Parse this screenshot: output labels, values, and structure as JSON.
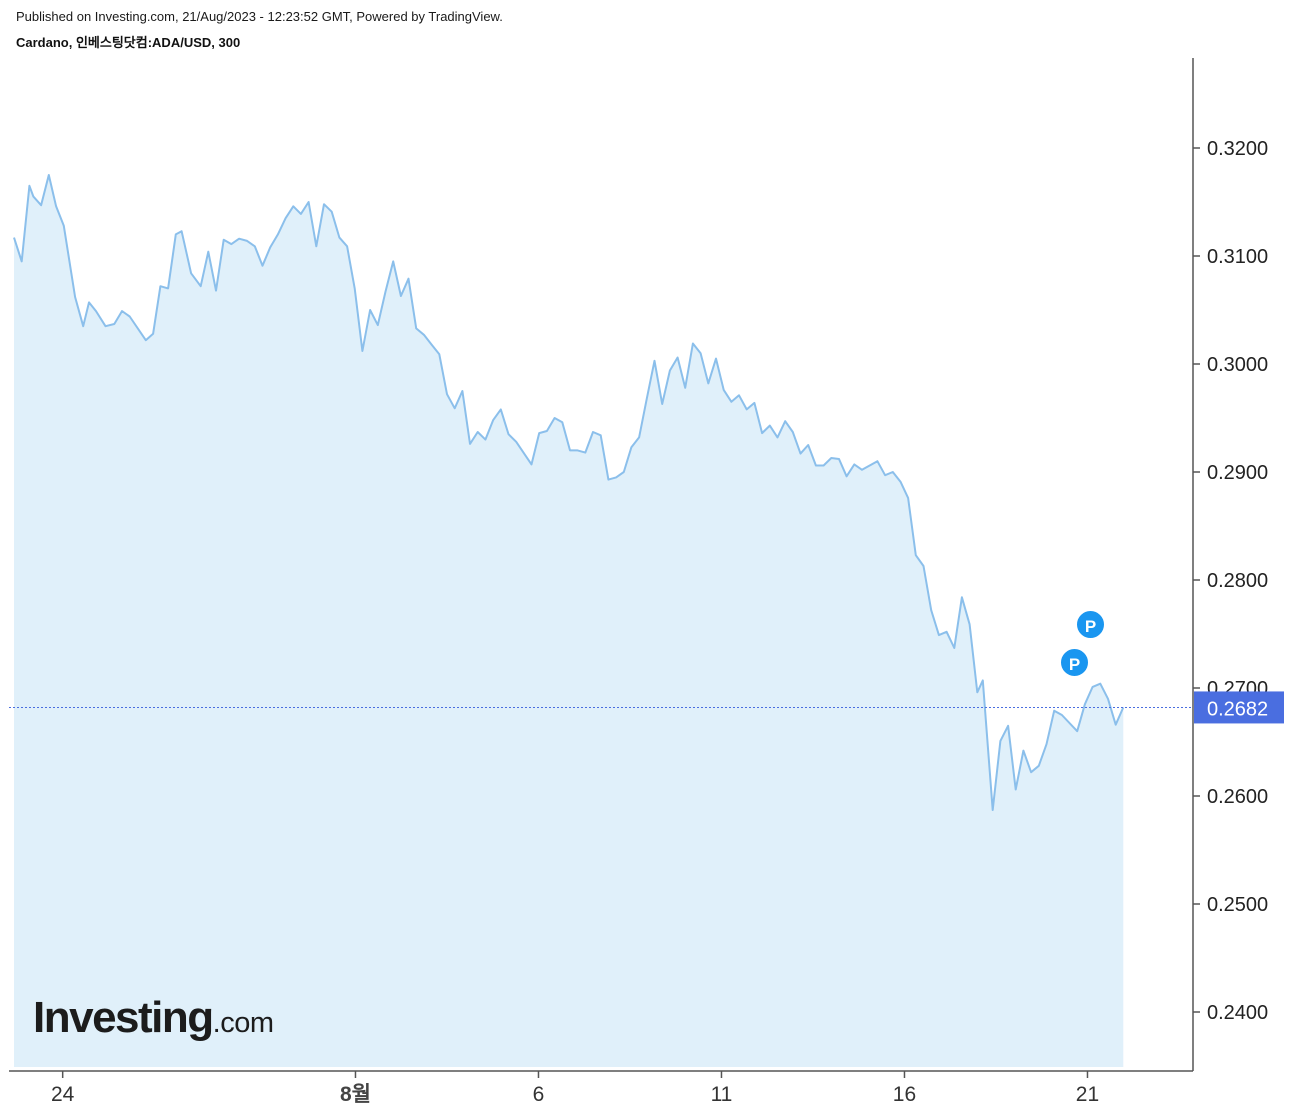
{
  "header": {
    "published": "Published on Investing.com, 21/Aug/2023 - 12:23:52 GMT, Powered by TradingView.",
    "symbol": "Cardano, 인베스팅닷컴:ADA/USD, 300"
  },
  "logo": {
    "word": "Investing",
    "tld": ".com"
  },
  "markers": [
    {
      "label": "P",
      "name": "marker-p-upper"
    },
    {
      "label": "P",
      "name": "marker-p-lower"
    }
  ],
  "colors": {
    "line": "#8bbfeb",
    "fill": "#e0f0fa",
    "price_label": "#4a6ee0",
    "axis": "#555555",
    "marker": "#1a96f0"
  },
  "chart_data": {
    "type": "area",
    "ylim": [
      0.2348,
      0.328
    ],
    "y_ticks": [
      {
        "v": 0.32,
        "label": "0.3200"
      },
      {
        "v": 0.31,
        "label": "0.3100"
      },
      {
        "v": 0.3,
        "label": "0.3000"
      },
      {
        "v": 0.29,
        "label": "0.2900"
      },
      {
        "v": 0.28,
        "label": "0.2800"
      },
      {
        "v": 0.27,
        "label": "0.2700"
      },
      {
        "v": 0.26,
        "label": "0.2600"
      },
      {
        "v": 0.25,
        "label": "0.2500"
      },
      {
        "v": 0.24,
        "label": "0.2400"
      }
    ],
    "x_ticks": [
      {
        "t": 1.33,
        "label": "24",
        "bold": false
      },
      {
        "t": 9.33,
        "label": "8월",
        "bold": true
      },
      {
        "t": 14.33,
        "label": "6",
        "bold": false
      },
      {
        "t": 19.33,
        "label": "11",
        "bold": false
      },
      {
        "t": 24.33,
        "label": "16",
        "bold": false
      },
      {
        "t": 29.33,
        "label": "21",
        "bold": false
      }
    ],
    "last_price": {
      "value": 0.2682,
      "label": "0.2682"
    },
    "series": [
      {
        "values": [
          [
            0.0,
            0.3117
          ],
          [
            0.21,
            0.3095
          ],
          [
            0.42,
            0.3165
          ],
          [
            0.53,
            0.3155
          ],
          [
            0.74,
            0.3147
          ],
          [
            0.95,
            0.3175
          ],
          [
            1.15,
            0.3146
          ],
          [
            1.36,
            0.3128
          ],
          [
            1.67,
            0.3062
          ],
          [
            1.89,
            0.3035
          ],
          [
            2.05,
            0.3057
          ],
          [
            2.24,
            0.3049
          ],
          [
            2.5,
            0.3035
          ],
          [
            2.74,
            0.3037
          ],
          [
            2.95,
            0.3049
          ],
          [
            3.16,
            0.3044
          ],
          [
            3.6,
            0.3022
          ],
          [
            3.8,
            0.3028
          ],
          [
            4.0,
            0.3072
          ],
          [
            4.21,
            0.307
          ],
          [
            4.42,
            0.312
          ],
          [
            4.58,
            0.3123
          ],
          [
            4.84,
            0.3084
          ],
          [
            5.1,
            0.3072
          ],
          [
            5.31,
            0.3104
          ],
          [
            5.52,
            0.3068
          ],
          [
            5.73,
            0.3115
          ],
          [
            5.94,
            0.3111
          ],
          [
            6.15,
            0.3116
          ],
          [
            6.37,
            0.3114
          ],
          [
            6.58,
            0.3109
          ],
          [
            6.79,
            0.3091
          ],
          [
            7.0,
            0.3108
          ],
          [
            7.21,
            0.312
          ],
          [
            7.42,
            0.3135
          ],
          [
            7.63,
            0.3146
          ],
          [
            7.84,
            0.3139
          ],
          [
            8.05,
            0.315
          ],
          [
            8.26,
            0.3109
          ],
          [
            8.47,
            0.3148
          ],
          [
            8.68,
            0.3141
          ],
          [
            8.89,
            0.3117
          ],
          [
            9.1,
            0.3109
          ],
          [
            9.31,
            0.307
          ],
          [
            9.52,
            0.3012
          ],
          [
            9.73,
            0.305
          ],
          [
            9.94,
            0.3036
          ],
          [
            10.15,
            0.3067
          ],
          [
            10.36,
            0.3095
          ],
          [
            10.57,
            0.3063
          ],
          [
            10.78,
            0.3079
          ],
          [
            10.99,
            0.3033
          ],
          [
            11.2,
            0.3027
          ],
          [
            11.41,
            0.3018
          ],
          [
            11.62,
            0.3009
          ],
          [
            11.83,
            0.2972
          ],
          [
            12.04,
            0.2959
          ],
          [
            12.25,
            0.2975
          ],
          [
            12.46,
            0.2926
          ],
          [
            12.67,
            0.2937
          ],
          [
            12.88,
            0.293
          ],
          [
            13.09,
            0.2948
          ],
          [
            13.3,
            0.2958
          ],
          [
            13.51,
            0.2935
          ],
          [
            13.72,
            0.2928
          ],
          [
            14.14,
            0.2907
          ],
          [
            14.35,
            0.2936
          ],
          [
            14.56,
            0.2938
          ],
          [
            14.77,
            0.295
          ],
          [
            14.98,
            0.2946
          ],
          [
            15.19,
            0.292
          ],
          [
            15.4,
            0.292
          ],
          [
            15.61,
            0.2918
          ],
          [
            15.82,
            0.2937
          ],
          [
            16.03,
            0.2934
          ],
          [
            16.24,
            0.2893
          ],
          [
            16.45,
            0.2895
          ],
          [
            16.66,
            0.29
          ],
          [
            16.87,
            0.2923
          ],
          [
            17.08,
            0.2932
          ],
          [
            17.29,
            0.2968
          ],
          [
            17.5,
            0.3003
          ],
          [
            17.71,
            0.2963
          ],
          [
            17.92,
            0.2994
          ],
          [
            18.13,
            0.3006
          ],
          [
            18.34,
            0.2978
          ],
          [
            18.55,
            0.3019
          ],
          [
            18.76,
            0.301
          ],
          [
            18.97,
            0.2982
          ],
          [
            19.18,
            0.3005
          ],
          [
            19.39,
            0.2976
          ],
          [
            19.6,
            0.2965
          ],
          [
            19.81,
            0.2971
          ],
          [
            20.02,
            0.2958
          ],
          [
            20.23,
            0.2964
          ],
          [
            20.44,
            0.2936
          ],
          [
            20.65,
            0.2943
          ],
          [
            20.86,
            0.2932
          ],
          [
            21.07,
            0.2947
          ],
          [
            21.28,
            0.2937
          ],
          [
            21.49,
            0.2917
          ],
          [
            21.7,
            0.2925
          ],
          [
            21.91,
            0.2906
          ],
          [
            22.12,
            0.2906
          ],
          [
            22.33,
            0.2913
          ],
          [
            22.54,
            0.2912
          ],
          [
            22.75,
            0.2896
          ],
          [
            22.96,
            0.2907
          ],
          [
            23.17,
            0.2902
          ],
          [
            23.38,
            0.2906
          ],
          [
            23.59,
            0.291
          ],
          [
            23.8,
            0.2897
          ],
          [
            24.01,
            0.29
          ],
          [
            24.22,
            0.2891
          ],
          [
            24.43,
            0.2876
          ],
          [
            24.64,
            0.2823
          ],
          [
            24.85,
            0.2813
          ],
          [
            25.06,
            0.2772
          ],
          [
            25.27,
            0.2749
          ],
          [
            25.48,
            0.2752
          ],
          [
            25.69,
            0.2737
          ],
          [
            25.9,
            0.2784
          ],
          [
            26.11,
            0.2759
          ],
          [
            26.32,
            0.2696
          ],
          [
            26.47,
            0.2707
          ],
          [
            26.74,
            0.2587
          ],
          [
            26.95,
            0.2651
          ],
          [
            27.16,
            0.2665
          ],
          [
            27.37,
            0.2606
          ],
          [
            27.58,
            0.2642
          ],
          [
            27.79,
            0.2622
          ],
          [
            28.0,
            0.2628
          ],
          [
            28.21,
            0.2648
          ],
          [
            28.42,
            0.2679
          ],
          [
            28.63,
            0.2675
          ],
          [
            29.05,
            0.266
          ],
          [
            29.26,
            0.2685
          ],
          [
            29.47,
            0.2701
          ],
          [
            29.68,
            0.2704
          ],
          [
            29.89,
            0.269
          ],
          [
            30.1,
            0.2666
          ],
          [
            30.31,
            0.2682
          ]
        ]
      }
    ]
  }
}
